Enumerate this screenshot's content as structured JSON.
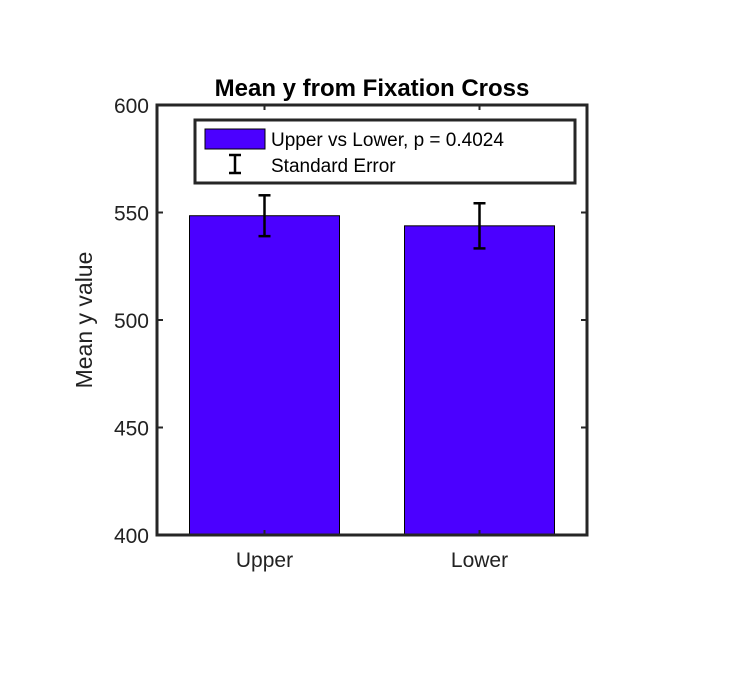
{
  "chart_data": {
    "type": "bar",
    "title": "Mean y from Fixation Cross",
    "xlabel": "",
    "ylabel": "Mean y value",
    "categories": [
      "Upper",
      "Lower"
    ],
    "values": [
      548.5,
      543.8
    ],
    "error": [
      9.5,
      10.5
    ],
    "ylim": [
      400,
      600
    ],
    "yticks": [
      400,
      450,
      500,
      550,
      600
    ],
    "grid": false,
    "legend": {
      "placement": "top",
      "entries": [
        "Upper vs Lower, p = 0.4024",
        "Standard Error"
      ]
    },
    "colors": {
      "bar": "#4b00ff",
      "error": "#000000",
      "axis": "#262626"
    }
  }
}
